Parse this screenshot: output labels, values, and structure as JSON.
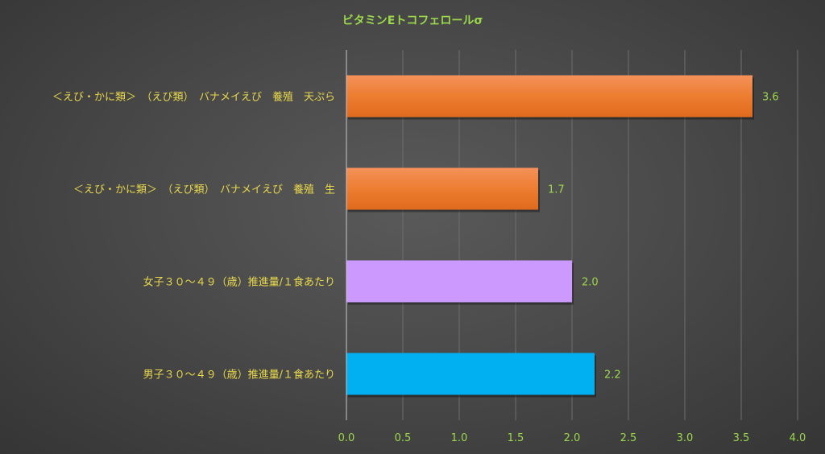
{
  "colors": {
    "title": "#9bd84a",
    "category_label": "#e8d84a",
    "tick_label": "#9bd84a",
    "data_label": "#9bd84a",
    "gridline": "#6e6e6e",
    "axis": "#c8c8c8"
  },
  "chart_data": {
    "type": "bar",
    "orientation": "horizontal",
    "title": "ビタミンEトコフェロールσ",
    "xlabel": "",
    "ylabel": "",
    "xlim": [
      0,
      4.0
    ],
    "xticks": [
      "0.0",
      "0.5",
      "1.0",
      "1.5",
      "2.0",
      "2.5",
      "3.0",
      "3.5",
      "4.0"
    ],
    "grid": true,
    "legend": "none",
    "categories": [
      "＜えび・かに類＞　（えび類）　バナメイえび　養殖　天ぷら",
      "＜えび・かに類＞　（えび類）　バナメイえび　養殖　生",
      "女子３０～４９（歳）推進量/１食あたり",
      "男子３０～４９（歳）推進量/１食あたり"
    ],
    "values": [
      3.6,
      1.7,
      2.0,
      2.2
    ],
    "value_labels": [
      "3.6",
      "1.7",
      "2.0",
      "2.2"
    ],
    "bar_colors": [
      "#ed7d31",
      "#ed7d31",
      "#cc99ff",
      "#00b0f0"
    ]
  }
}
